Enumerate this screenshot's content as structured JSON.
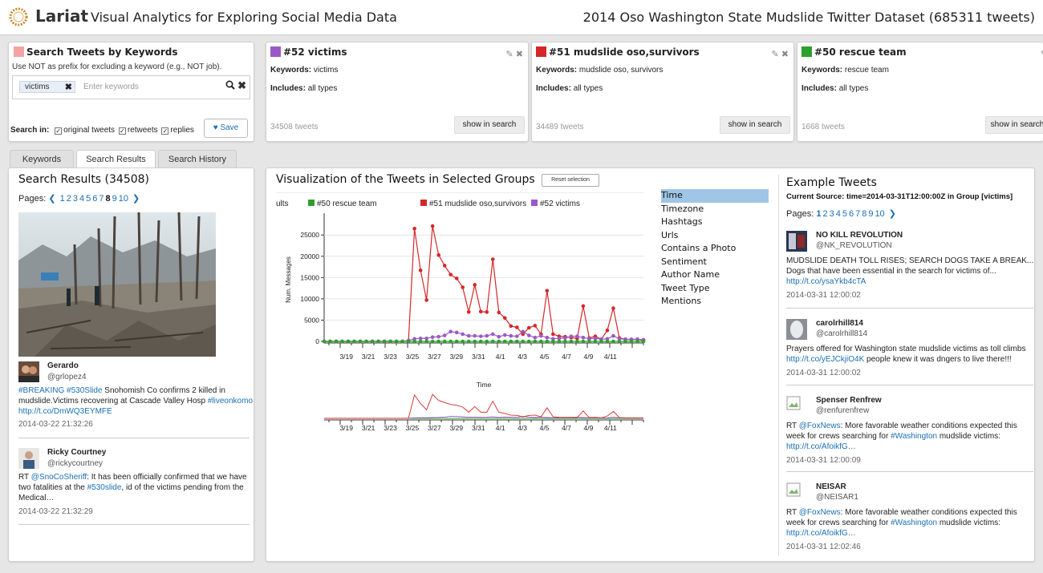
{
  "header": {
    "app_name": "Lariat",
    "tagline": "Visual Analytics for Exploring Social Media Data",
    "dataset": "2014 Oso Washington State Mudslide Twitter Dataset (685311 tweets)"
  },
  "keyword_panel": {
    "title": "Search Tweets by Keywords",
    "color": "#f4a3a3",
    "hint": "Use NOT as prefix for excluding a keyword (e.g., NOT job).",
    "chip": "victims",
    "placeholder": "Enter keywords",
    "search_in_label": "Search in:",
    "options": [
      "original tweets",
      "retweets",
      "replies"
    ],
    "save_label": "Save"
  },
  "groups": [
    {
      "title": "#52 victims",
      "color": "#9b59c8",
      "keywords_label": "Keywords:",
      "keywords": "victims",
      "includes_label": "Includes:",
      "includes": "all types",
      "count": "34508 tweets",
      "button": "show in search"
    },
    {
      "title": "#51 mudslide oso,survivors",
      "color": "#d62728",
      "keywords_label": "Keywords:",
      "keywords": "mudslide oso, survivors",
      "includes_label": "Includes:",
      "includes": "all types",
      "count": "34489 tweets",
      "button": "show in search"
    },
    {
      "title": "#50 rescue team",
      "color": "#2ca02c",
      "keywords_label": "Keywords:",
      "keywords": "rescue team",
      "includes_label": "Includes:",
      "includes": "all types",
      "count": "1668 tweets",
      "button": "show in search"
    }
  ],
  "tabs": [
    "Keywords",
    "Search Results",
    "Search History"
  ],
  "search_results": {
    "title": "Search Results (34508)",
    "pages_label": "Pages:",
    "pages": [
      "1",
      "2",
      "3",
      "4",
      "5",
      "6",
      "7",
      "8",
      "9",
      "10"
    ],
    "current_page": "8",
    "tweets": [
      {
        "name": "Gerardo",
        "handle": "@grlopez4",
        "parts": [
          {
            "t": "#BREAKING",
            "link": true
          },
          {
            "t": " ",
            "link": false
          },
          {
            "t": "#530Slide",
            "link": true
          },
          {
            "t": " Snohomish Co confirms 2 killed in mudslide.Victims recovering at Cascade Valley Hosp ",
            "link": false
          },
          {
            "t": "#liveonkomo",
            "link": true
          },
          {
            "t": " ",
            "link": false
          },
          {
            "t": "http://t.co/DmWQ3EYMFE",
            "link": true
          }
        ],
        "time": "2014-03-22 21:32:26"
      },
      {
        "name": "Ricky Courtney",
        "handle": "@rickycourtney",
        "parts": [
          {
            "t": "RT ",
            "link": false
          },
          {
            "t": "@SnoCoSheriff",
            "link": true
          },
          {
            "t": ": It has been officially confirmed that we have two fatalities at the ",
            "link": false
          },
          {
            "t": "#530slide",
            "link": true
          },
          {
            "t": ", id of the victims pending from the Medical…",
            "link": false
          }
        ],
        "time": "2014-03-22 21:32:29"
      }
    ]
  },
  "viz": {
    "title": "Visualization of the Tweets in Selected Groups",
    "reset_label": "Reset selection",
    "facets": [
      "Time",
      "Timezone",
      "Hashtags",
      "Urls",
      "Contains a Photo",
      "Sentiment",
      "Author Name",
      "Tweet Type",
      "Mentions"
    ],
    "active_facet": "Time"
  },
  "chart_data": {
    "type": "line",
    "ylabel": "Num. Messages",
    "xlabel": "Time",
    "ylim": [
      0,
      29000
    ],
    "yticks": [
      0,
      5000,
      10000,
      15000,
      20000,
      25000
    ],
    "xtick_labels": [
      "3/19",
      "3/21",
      "3/23",
      "3/25",
      "3/27",
      "3/29",
      "3/31",
      "4/1",
      "4/3",
      "4/5",
      "4/7",
      "4/9",
      "4/11"
    ],
    "legend_partial": "ults",
    "legend_placement": "top",
    "series": [
      {
        "name": "#50 rescue team",
        "color": "#2ca02c",
        "values": [
          0,
          0,
          0,
          0,
          0,
          0,
          0,
          0,
          0,
          0,
          0,
          0,
          0,
          0,
          0,
          0,
          0,
          0,
          0,
          0,
          0,
          0,
          0,
          0,
          0,
          0,
          0,
          0,
          0,
          0,
          0,
          0,
          0,
          0,
          0,
          0,
          0,
          0,
          0,
          0,
          0,
          0,
          0,
          0,
          0,
          0,
          0,
          0,
          0,
          0,
          0,
          0,
          0,
          0
        ]
      },
      {
        "name": "#51 mudslide oso,survivors",
        "color": "#d62728",
        "values": [
          0,
          0,
          0,
          0,
          0,
          0,
          0,
          0,
          0,
          0,
          0,
          0,
          0,
          0,
          100,
          26500,
          16700,
          9700,
          27100,
          20300,
          17800,
          15700,
          14800,
          12700,
          6900,
          13300,
          7000,
          6900,
          19300,
          6800,
          5500,
          3600,
          3300,
          1700,
          3200,
          3700,
          1700,
          11900,
          1700,
          1200,
          1100,
          900,
          700,
          8300,
          800,
          1200,
          500,
          2600,
          7800,
          800,
          500,
          400,
          500,
          200
        ]
      },
      {
        "name": "#52 victims",
        "color": "#9b59c8",
        "values": [
          0,
          0,
          0,
          0,
          0,
          0,
          0,
          0,
          0,
          0,
          0,
          0,
          0,
          0,
          200,
          600,
          700,
          700,
          1000,
          1100,
          1400,
          2300,
          2100,
          1700,
          1300,
          1300,
          1200,
          1300,
          1700,
          1100,
          1500,
          1300,
          1200,
          2300,
          1400,
          900,
          1300,
          900,
          600,
          700,
          800,
          1200,
          1200,
          900,
          600,
          700,
          500,
          600,
          1300,
          600,
          500,
          500,
          500,
          400
        ]
      }
    ]
  },
  "examples": {
    "title": "Example Tweets",
    "source": "Current Source: time=2014-03-31T12:00:00Z in Group [victims]",
    "pages_label": "Pages:",
    "pages": [
      "1",
      "2",
      "3",
      "4",
      "5",
      "6",
      "7",
      "8",
      "9",
      "10"
    ],
    "tweets": [
      {
        "name": "NO KILL REVOLUTION",
        "handle": "@NK_REVOLUTION",
        "lines": [
          [
            {
              "t": "MUDSLIDE DEATH TOLL RISES; SEARCH DOGS TAKE A BREAK...",
              "link": false
            }
          ],
          [
            {
              "t": "Dogs that have been essential in the search for victims of...",
              "link": false
            }
          ],
          [
            {
              "t": "http://t.co/ysaYkb4cTA",
              "link": true
            }
          ]
        ],
        "time": "2014-03-31 12:00:02"
      },
      {
        "name": "carolrhill814",
        "handle": "@carolrhill814",
        "lines": [
          [
            {
              "t": "Prayers offered for Washington state mudslide victims as toll climbs",
              "link": false
            }
          ],
          [
            {
              "t": "http://t.co/yEJCkjiO4K",
              "link": true
            },
            {
              "t": " people knew it was dngers to live there!!!",
              "link": false
            }
          ]
        ],
        "time": "2014-03-31 12:00:02"
      },
      {
        "name": "Spenser Renfrew",
        "handle": "@renfurenfrew",
        "lines": [
          [
            {
              "t": "RT ",
              "link": false
            },
            {
              "t": "@FoxNews",
              "link": true
            },
            {
              "t": ": More favorable weather conditions expected this",
              "link": false
            }
          ],
          [
            {
              "t": "week for crews searching for ",
              "link": false
            },
            {
              "t": "#Washington",
              "link": true
            },
            {
              "t": " mudslide victims:",
              "link": false
            }
          ],
          [
            {
              "t": "http://t.co/AfoikfG…",
              "link": true
            }
          ]
        ],
        "time": "2014-03-31 12:00:09"
      },
      {
        "name": "NEISAR",
        "handle": "@NEISAR1",
        "lines": [
          [
            {
              "t": "RT ",
              "link": false
            },
            {
              "t": "@FoxNews",
              "link": true
            },
            {
              "t": ": More favorable weather conditions expected this",
              "link": false
            }
          ],
          [
            {
              "t": "week for crews searching for ",
              "link": false
            },
            {
              "t": "#Washington",
              "link": true
            },
            {
              "t": " mudslide victims:",
              "link": false
            }
          ],
          [
            {
              "t": "http://t.co/AfoikfG…",
              "link": true
            }
          ]
        ],
        "time": "2014-03-31 12:02:46"
      }
    ]
  }
}
